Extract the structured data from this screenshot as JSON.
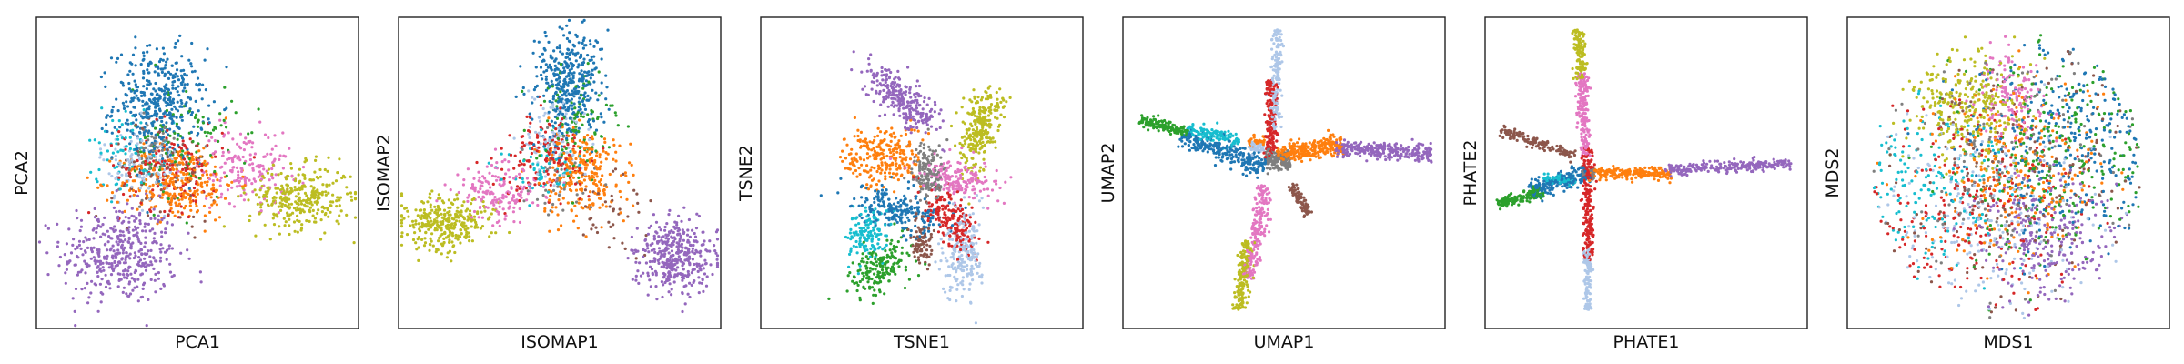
{
  "palette": {
    "blue": "#1f77b4",
    "light_blue": "#aec7e8",
    "orange": "#ff7f0e",
    "green": "#2ca02c",
    "red": "#d62728",
    "purple": "#9467bd",
    "brown": "#8c564b",
    "pink": "#e377c2",
    "gray": "#7f7f7f",
    "olive": "#bcbd22",
    "cyan": "#17becf"
  },
  "chart_data": [
    {
      "type": "scatter",
      "method": "PCA",
      "xlabel": "PCA1",
      "ylabel": "PCA2",
      "xticks": [],
      "yticks": [],
      "xlim": [
        0,
        100
      ],
      "ylim": [
        0,
        100
      ],
      "grid": false,
      "legend": "none",
      "marker_size": 1.6,
      "clusters": [
        {
          "color": "purple",
          "cx": 26,
          "cy": 24,
          "sx": 9,
          "sy": 8,
          "n": 420
        },
        {
          "color": "blue",
          "cx": 38,
          "cy": 72,
          "sx": 7,
          "sy": 9,
          "n": 420
        },
        {
          "color": "orange",
          "cx": 44,
          "cy": 47,
          "sx": 9,
          "sy": 6,
          "n": 300
        },
        {
          "color": "red",
          "cx": 42,
          "cy": 52,
          "sx": 8,
          "sy": 7,
          "n": 140
        },
        {
          "color": "olive",
          "cx": 82,
          "cy": 42,
          "sx": 8,
          "sy": 5,
          "n": 320
        },
        {
          "color": "pink",
          "cx": 65,
          "cy": 52,
          "sx": 7,
          "sy": 6,
          "n": 170
        },
        {
          "color": "light_blue",
          "cx": 32,
          "cy": 52,
          "sx": 6,
          "sy": 6,
          "n": 110
        },
        {
          "color": "green",
          "cx": 46,
          "cy": 60,
          "sx": 8,
          "sy": 9,
          "n": 110
        },
        {
          "color": "cyan",
          "cx": 28,
          "cy": 58,
          "sx": 6,
          "sy": 7,
          "n": 70
        },
        {
          "color": "gray",
          "cx": 36,
          "cy": 55,
          "sx": 6,
          "sy": 6,
          "n": 60
        },
        {
          "color": "brown",
          "cx": 40,
          "cy": 50,
          "sx": 8,
          "sy": 8,
          "n": 60
        }
      ]
    },
    {
      "type": "scatter",
      "method": "ISOMAP",
      "xlabel": "ISOMAP1",
      "ylabel": "ISOMAP2",
      "xticks": [],
      "yticks": [],
      "xlim": [
        0,
        100
      ],
      "ylim": [
        0,
        100
      ],
      "grid": false,
      "legend": "none",
      "marker_size": 1.6,
      "clusters": [
        {
          "color": "blue",
          "cx": 53,
          "cy": 78,
          "sx": 5,
          "sy": 9,
          "n": 380
        },
        {
          "color": "olive",
          "cx": 14,
          "cy": 34,
          "sx": 7,
          "sy": 4,
          "n": 320
        },
        {
          "color": "purple",
          "cx": 86,
          "cy": 23,
          "sx": 6,
          "sy": 6,
          "n": 380
        },
        {
          "color": "orange",
          "cx": 57,
          "cy": 50,
          "sx": 6,
          "sy": 7,
          "n": 260
        },
        {
          "color": "pink",
          "cx": 32,
          "cy": 44,
          "sx": 7,
          "sy": 5,
          "n": 170
        },
        {
          "color": "red",
          "cx": 46,
          "cy": 55,
          "sx": 7,
          "sy": 7,
          "n": 140
        },
        {
          "color": "green",
          "cx": 55,
          "cy": 66,
          "sx": 6,
          "sy": 8,
          "n": 100
        },
        {
          "color": "light_blue",
          "cx": 48,
          "cy": 62,
          "sx": 5,
          "sy": 6,
          "n": 90
        },
        {
          "color": "cyan",
          "cx": 45,
          "cy": 52,
          "sx": 6,
          "sy": 5,
          "n": 60
        },
        {
          "color": "gray",
          "cx": 50,
          "cy": 48,
          "sx": 6,
          "sy": 6,
          "n": 50
        },
        {
          "color": "brown",
          "cx": 66,
          "cy": 38,
          "sx": 6,
          "sy": 6,
          "n": 40
        }
      ]
    },
    {
      "type": "scatter",
      "method": "TSNE",
      "xlabel": "TSNE1",
      "ylabel": "TSNE2",
      "xticks": [],
      "yticks": [],
      "xlim": [
        0,
        100
      ],
      "ylim": [
        0,
        100
      ],
      "grid": false,
      "legend": "none",
      "marker_size": 1.6,
      "clusters": [
        {
          "color": "purple",
          "cx": 43,
          "cy": 74,
          "sx": 3,
          "sy": 7,
          "rot": 45,
          "n": 260
        },
        {
          "color": "olive",
          "cx": 68,
          "cy": 64,
          "sx": 3,
          "sy": 7,
          "rot": -15,
          "n": 260
        },
        {
          "color": "orange",
          "cx": 38,
          "cy": 55,
          "sx": 6,
          "sy": 5,
          "rot": 0,
          "n": 240
        },
        {
          "color": "gray",
          "cx": 52,
          "cy": 50,
          "sx": 2.5,
          "sy": 5,
          "rot": 0,
          "n": 150
        },
        {
          "color": "pink",
          "cx": 62,
          "cy": 48,
          "sx": 3,
          "sy": 6,
          "rot": 70,
          "n": 180
        },
        {
          "color": "blue",
          "cx": 42,
          "cy": 38,
          "sx": 3,
          "sy": 7,
          "rot": 70,
          "n": 220
        },
        {
          "color": "red",
          "cx": 60,
          "cy": 34,
          "sx": 3,
          "sy": 6,
          "rot": 30,
          "n": 180
        },
        {
          "color": "cyan",
          "cx": 33,
          "cy": 30,
          "sx": 3,
          "sy": 4,
          "rot": 0,
          "n": 140
        },
        {
          "color": "green",
          "cx": 38,
          "cy": 20,
          "sx": 3,
          "sy": 6,
          "rot": -50,
          "n": 180
        },
        {
          "color": "brown",
          "cx": 50,
          "cy": 28,
          "sx": 1.5,
          "sy": 4,
          "rot": 0,
          "n": 90
        },
        {
          "color": "light_blue",
          "cx": 63,
          "cy": 24,
          "sx": 3,
          "sy": 7,
          "rot": -5,
          "n": 200
        }
      ]
    },
    {
      "type": "scatter",
      "method": "UMAP",
      "xlabel": "UMAP1",
      "ylabel": "UMAP2",
      "xticks": [],
      "yticks": [],
      "xlim": [
        0,
        100
      ],
      "ylim": [
        0,
        100
      ],
      "grid": false,
      "legend": "none",
      "marker_size": 1.6,
      "branches": [
        {
          "color": "light_blue",
          "x0": 47,
          "y0": 64,
          "x1": 48,
          "y1": 96,
          "w": 0.9,
          "n": 160
        },
        {
          "color": "red",
          "x0": 46,
          "y0": 55,
          "x1": 46,
          "y1": 80,
          "w": 0.9,
          "n": 160
        },
        {
          "color": "green",
          "x0": 5,
          "y0": 67,
          "x1": 20,
          "y1": 63,
          "w": 0.9,
          "n": 140
        },
        {
          "color": "cyan",
          "x0": 20,
          "y0": 64,
          "x1": 36,
          "y1": 60,
          "w": 1.1,
          "n": 120
        },
        {
          "color": "blue",
          "x0": 18,
          "y0": 62,
          "x1": 44,
          "y1": 52,
          "w": 1.6,
          "n": 260
        },
        {
          "color": "purple",
          "x0": 66,
          "y0": 58,
          "x1": 96,
          "y1": 56,
          "w": 1.4,
          "n": 260
        },
        {
          "color": "orange",
          "x0": 48,
          "y0": 56,
          "x1": 68,
          "y1": 59,
          "w": 1.6,
          "n": 260
        },
        {
          "color": "gray",
          "x0": 44,
          "y0": 54,
          "x1": 52,
          "y1": 54,
          "w": 1.6,
          "n": 120
        },
        {
          "color": "pink",
          "x0": 39,
          "y0": 16,
          "x1": 44,
          "y1": 46,
          "w": 1.3,
          "n": 200
        },
        {
          "color": "olive",
          "x0": 36,
          "y0": 6,
          "x1": 39,
          "y1": 28,
          "w": 1.1,
          "n": 180
        },
        {
          "color": "brown",
          "x0": 52,
          "y0": 46,
          "x1": 58,
          "y1": 37,
          "w": 0.8,
          "n": 90
        },
        {
          "color": "light_blue",
          "x0": 39,
          "y0": 58,
          "x1": 44,
          "y1": 58,
          "w": 0.9,
          "n": 40
        },
        {
          "color": "orange",
          "x0": 39,
          "y0": 60,
          "x1": 44,
          "y1": 60,
          "w": 0.9,
          "n": 40
        }
      ]
    },
    {
      "type": "scatter",
      "method": "PHATE",
      "xlabel": "PHATE1",
      "ylabel": "PHATE2",
      "xticks": [],
      "yticks": [],
      "xlim": [
        0,
        100
      ],
      "ylim": [
        0,
        100
      ],
      "grid": false,
      "legend": "none",
      "marker_size": 1.6,
      "branches": [
        {
          "color": "olive",
          "x0": 30,
          "y0": 80,
          "x1": 29,
          "y1": 96,
          "w": 0.9,
          "n": 130
        },
        {
          "color": "pink",
          "x0": 31,
          "y0": 55,
          "x1": 30,
          "y1": 82,
          "w": 0.9,
          "n": 180
        },
        {
          "color": "red",
          "x0": 32,
          "y0": 22,
          "x1": 32,
          "y1": 58,
          "w": 0.9,
          "n": 220
        },
        {
          "color": "light_blue",
          "x0": 32,
          "y0": 6,
          "x1": 32,
          "y1": 26,
          "w": 0.7,
          "n": 110
        },
        {
          "color": "brown",
          "x0": 5,
          "y0": 64,
          "x1": 28,
          "y1": 55,
          "w": 0.8,
          "n": 140
        },
        {
          "color": "green",
          "x0": 4,
          "y0": 40,
          "x1": 18,
          "y1": 44,
          "w": 1.0,
          "n": 160
        },
        {
          "color": "blue",
          "x0": 14,
          "y0": 44,
          "x1": 32,
          "y1": 50,
          "w": 1.4,
          "n": 220
        },
        {
          "color": "orange",
          "x0": 32,
          "y0": 50,
          "x1": 58,
          "y1": 50,
          "w": 1.0,
          "n": 220
        },
        {
          "color": "purple",
          "x0": 56,
          "y0": 51,
          "x1": 95,
          "y1": 53,
          "w": 0.9,
          "n": 240
        },
        {
          "color": "cyan",
          "x0": 18,
          "y0": 48,
          "x1": 28,
          "y1": 48,
          "w": 0.8,
          "n": 60
        },
        {
          "color": "gray",
          "x0": 30,
          "y0": 50,
          "x1": 34,
          "y1": 50,
          "w": 0.8,
          "n": 40
        }
      ]
    },
    {
      "type": "scatter",
      "method": "MDS",
      "xlabel": "MDS1",
      "ylabel": "MDS2",
      "xticks": [],
      "yticks": [],
      "xlim": [
        0,
        100
      ],
      "ylim": [
        0,
        100
      ],
      "grid": false,
      "legend": "none",
      "marker_size": 1.6,
      "disc": {
        "cx": 50,
        "cy": 50,
        "rx": 42,
        "ry": 47
      },
      "clusters": [
        {
          "color": "olive",
          "cx": 38,
          "cy": 72,
          "sx": 9,
          "sy": 9,
          "n": 300
        },
        {
          "color": "pink",
          "cx": 52,
          "cy": 74,
          "sx": 5,
          "sy": 8,
          "n": 140
        },
        {
          "color": "purple",
          "cx": 62,
          "cy": 30,
          "sx": 10,
          "sy": 10,
          "n": 260
        },
        {
          "color": "orange",
          "cx": 52,
          "cy": 50,
          "sx": 14,
          "sy": 14,
          "n": 260
        },
        {
          "color": "blue",
          "cx": 68,
          "cy": 60,
          "sx": 14,
          "sy": 16,
          "n": 300
        },
        {
          "color": "green",
          "cx": 65,
          "cy": 55,
          "sx": 16,
          "sy": 18,
          "n": 260
        },
        {
          "color": "red",
          "cx": 40,
          "cy": 40,
          "sx": 16,
          "sy": 16,
          "n": 220
        },
        {
          "color": "light_blue",
          "cx": 45,
          "cy": 35,
          "sx": 16,
          "sy": 16,
          "n": 220
        },
        {
          "color": "cyan",
          "cx": 28,
          "cy": 45,
          "sx": 12,
          "sy": 14,
          "n": 160
        },
        {
          "color": "gray",
          "cx": 50,
          "cy": 50,
          "sx": 18,
          "sy": 18,
          "n": 160
        },
        {
          "color": "brown",
          "cx": 50,
          "cy": 50,
          "sx": 18,
          "sy": 18,
          "n": 160
        }
      ]
    }
  ]
}
